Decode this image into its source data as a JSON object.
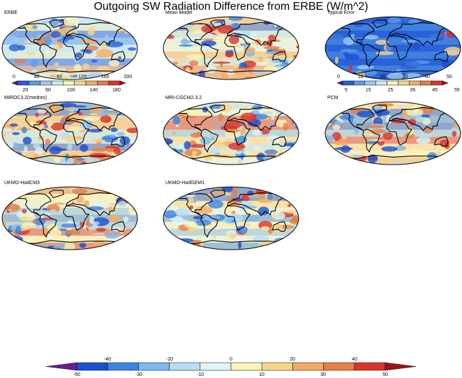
{
  "title": "Outgoing SW Radiation Difference from ERBE (W/m^2)",
  "chart_data": {
    "type": "heatmap",
    "title": "Outgoing SW Radiation Difference from ERBE (W/m^2)",
    "panels": [
      {
        "label": "ERBE",
        "field": "absolute"
      },
      {
        "label": "Mean Model",
        "field": "difference"
      },
      {
        "label": "Typical Error",
        "field": "error"
      },
      {
        "label": "MIROC3.2(medres)",
        "field": "difference"
      },
      {
        "label": "MRI-CGCM2.3.2",
        "field": "difference"
      },
      {
        "label": "PCM",
        "field": "difference"
      },
      {
        "label": "UKMO-HadCM3",
        "field": "difference"
      },
      {
        "label": "UKMO-HadGEM1",
        "field": "difference"
      }
    ],
    "colorbars": [
      {
        "panel": "ERBE",
        "levels": [
          0,
          20,
          40,
          60,
          80,
          100,
          120,
          140,
          160,
          180,
          200
        ],
        "colors": [
          "#5a1a8c",
          "#2a5cd8",
          "#5b9bec",
          "#9ccaf2",
          "#cde8f2",
          "#fbf2b8",
          "#f9d58a",
          "#f2ad63",
          "#e67e45",
          "#d8342b",
          "#9d1417"
        ],
        "top_labels": [
          "0",
          "40",
          "80",
          "120",
          "160",
          "200"
        ],
        "bottom_labels": [
          "20",
          "60",
          "100",
          "140",
          "180"
        ]
      },
      {
        "panel": "Typical Error",
        "levels": [
          5,
          10,
          15,
          20,
          25,
          30,
          35,
          40,
          45,
          50,
          55
        ],
        "colors": [
          "#5a1a8c",
          "#2a5cd8",
          "#5b9bec",
          "#9ccaf2",
          "#cde8f2",
          "#fbf2b8",
          "#f9d58a",
          "#f2ad63",
          "#e67e45",
          "#d8342b",
          "#9d1417"
        ],
        "top_labels": [
          "0",
          "10",
          "20",
          "30",
          "40",
          "50"
        ],
        "bottom_labels": [
          "5",
          "15",
          "25",
          "35",
          "45",
          "55"
        ]
      },
      {
        "panel": "shared-difference",
        "levels": [
          -50,
          -40,
          -30,
          -20,
          -10,
          0,
          10,
          20,
          30,
          40,
          50
        ],
        "colors": [
          "#6a1d98",
          "#1a4fd1",
          "#3a85e3",
          "#7db8ef",
          "#b5def4",
          "#e0f4f5",
          "#fbf2b8",
          "#f9d58a",
          "#f2ad63",
          "#e67e45",
          "#d8342b",
          "#9d1417"
        ],
        "top_labels": [
          "-40",
          "-20",
          "0",
          "20",
          "40"
        ],
        "bottom_labels": [
          "-50",
          "-30",
          "-10",
          "10",
          "30",
          "50"
        ]
      }
    ]
  }
}
